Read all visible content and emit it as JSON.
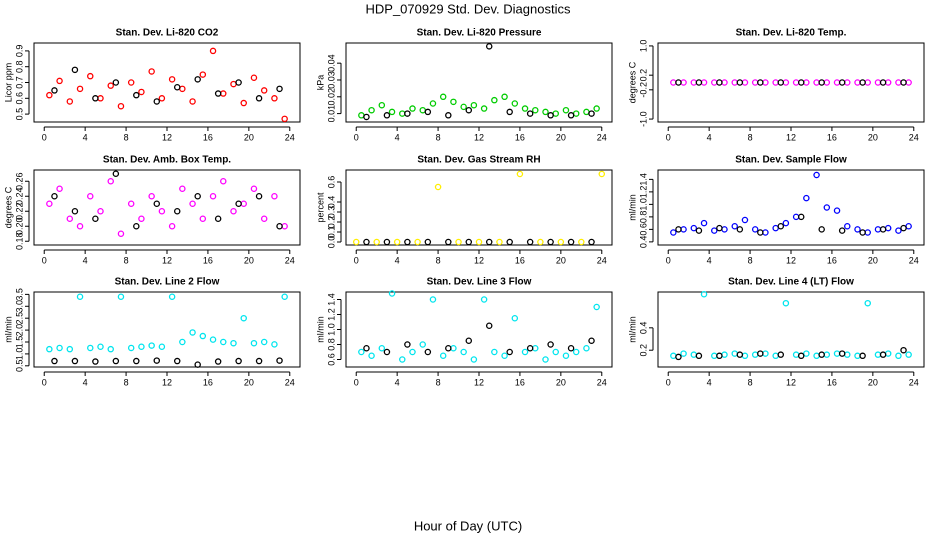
{
  "page": {
    "title": "HDP_070929  Std. Dev. Diagnostics",
    "xlabel": "Hour of Day (UTC)"
  },
  "chart_data": [
    {
      "type": "scatter",
      "title": "Stan. Dev. Li-820 CO2",
      "ylabel": "Licor ppm",
      "xlim": [
        -1,
        25
      ],
      "xticks": [
        0,
        4,
        8,
        12,
        16,
        20,
        24
      ],
      "ylim": [
        0.45,
        0.95
      ],
      "yticks": [
        0.5,
        0.6,
        0.7,
        0.8,
        0.9
      ],
      "series": [
        {
          "color": "#ff0000",
          "x": [
            0.5,
            1.5,
            2.5,
            3.5,
            4.5,
            5.5,
            6.5,
            7.5,
            8.5,
            9.5,
            10.5,
            11.5,
            12.5,
            13.5,
            14.5,
            15.5,
            16.5,
            17.5,
            18.5,
            19.5,
            20.5,
            21.5,
            22.5,
            23.5
          ],
          "values": [
            0.62,
            0.71,
            0.58,
            0.66,
            0.74,
            0.6,
            0.68,
            0.55,
            0.7,
            0.64,
            0.77,
            0.6,
            0.72,
            0.66,
            0.58,
            0.75,
            0.9,
            0.63,
            0.69,
            0.57,
            0.73,
            0.65,
            0.6,
            0.47
          ]
        },
        {
          "color": "#000000",
          "x": [
            1,
            3,
            5,
            7,
            9,
            11,
            13,
            15,
            17,
            19,
            21,
            23
          ],
          "values": [
            0.65,
            0.78,
            0.6,
            0.7,
            0.62,
            0.58,
            0.67,
            0.72,
            0.63,
            0.7,
            0.6,
            0.66
          ]
        }
      ]
    },
    {
      "type": "scatter",
      "title": "Stan. Dev. Li-820 Pressure",
      "ylabel": "kPa",
      "xlim": [
        -1,
        25
      ],
      "xticks": [
        0,
        4,
        8,
        12,
        16,
        20,
        24
      ],
      "ylim": [
        0.005,
        0.052
      ],
      "yticks": [
        0.01,
        0.02,
        0.03,
        0.04
      ],
      "series": [
        {
          "color": "#00cc00",
          "x": [
            0.5,
            1.5,
            2.5,
            3.5,
            4.5,
            5.5,
            6.5,
            7.5,
            8.5,
            9.5,
            10.5,
            11.5,
            12.5,
            13.5,
            14.5,
            15.5,
            16.5,
            17.5,
            18.5,
            19.5,
            20.5,
            21.5,
            22.5,
            23.5
          ],
          "values": [
            0.009,
            0.012,
            0.015,
            0.011,
            0.01,
            0.013,
            0.012,
            0.016,
            0.02,
            0.017,
            0.014,
            0.015,
            0.013,
            0.018,
            0.02,
            0.016,
            0.013,
            0.012,
            0.011,
            0.01,
            0.012,
            0.01,
            0.011,
            0.013
          ]
        },
        {
          "color": "#000000",
          "x": [
            1,
            3,
            5,
            7,
            9,
            11,
            13,
            15,
            17,
            19,
            21,
            23
          ],
          "values": [
            0.008,
            0.009,
            0.01,
            0.011,
            0.009,
            0.012,
            0.05,
            0.011,
            0.01,
            0.009,
            0.009,
            0.01
          ]
        }
      ]
    },
    {
      "type": "scatter",
      "title": "Stan. Dev. Li-820 Temp.",
      "ylabel": "degrees C",
      "xlim": [
        -1,
        25
      ],
      "xticks": [
        0,
        4,
        8,
        12,
        16,
        20,
        24
      ],
      "ylim": [
        -1.08,
        1.08
      ],
      "yticks": [
        {
          "value": -1,
          "label": "-1.0"
        },
        -0.2,
        0.2,
        {
          "value": 1,
          "label": "1.0"
        }
      ],
      "series": [
        {
          "color": "#ff00ff",
          "x": [
            0.5,
            1.5,
            2.5,
            3.5,
            4.5,
            5.5,
            6.5,
            7.5,
            8.5,
            9.5,
            10.5,
            11.5,
            12.5,
            13.5,
            14.5,
            15.5,
            16.5,
            17.5,
            18.5,
            19.5,
            20.5,
            21.5,
            22.5,
            23.5
          ],
          "values": [
            0,
            0,
            0,
            0,
            0,
            0,
            0,
            0,
            0,
            0,
            0,
            0,
            0,
            0,
            0,
            0,
            0,
            0,
            0,
            0,
            0,
            0,
            0,
            0
          ]
        },
        {
          "color": "#000000",
          "x": [
            1,
            3,
            5,
            7,
            9,
            11,
            13,
            15,
            17,
            19,
            21,
            23
          ],
          "values": [
            0,
            0,
            0,
            0,
            0,
            0,
            0,
            0,
            0,
            0,
            0,
            0
          ]
        }
      ]
    },
    {
      "type": "scatter",
      "title": "Stan. Dev. Amb. Box Temp.",
      "ylabel": "degrees C",
      "xlim": [
        -1,
        25
      ],
      "xticks": [
        0,
        4,
        8,
        12,
        16,
        20,
        24
      ],
      "ylim": [
        0.175,
        0.275
      ],
      "yticks": [
        0.18,
        {
          "value": 0.2,
          "label": "0.20"
        },
        0.22,
        0.24,
        0.26
      ],
      "series": [
        {
          "color": "#ff00ff",
          "x": [
            0.5,
            1.5,
            2.5,
            3.5,
            4.5,
            5.5,
            6.5,
            7.5,
            8.5,
            9.5,
            10.5,
            11.5,
            12.5,
            13.5,
            14.5,
            15.5,
            16.5,
            17.5,
            18.5,
            19.5,
            20.5,
            21.5,
            22.5,
            23.5
          ],
          "values": [
            0.23,
            0.25,
            0.21,
            0.2,
            0.24,
            0.22,
            0.26,
            0.19,
            0.23,
            0.21,
            0.24,
            0.22,
            0.2,
            0.25,
            0.23,
            0.21,
            0.24,
            0.26,
            0.22,
            0.23,
            0.25,
            0.21,
            0.24,
            0.2
          ]
        },
        {
          "color": "#000000",
          "x": [
            1,
            3,
            5,
            7,
            9,
            11,
            13,
            15,
            17,
            19,
            21,
            23
          ],
          "values": [
            0.24,
            0.22,
            0.21,
            0.27,
            0.2,
            0.23,
            0.22,
            0.24,
            0.21,
            0.23,
            0.24,
            0.2
          ]
        }
      ]
    },
    {
      "type": "scatter",
      "title": "Stan. Dev. Gas Stream RH",
      "ylabel": "percent",
      "xlim": [
        -1,
        25
      ],
      "xticks": [
        0,
        4,
        8,
        12,
        16,
        20,
        24
      ],
      "ylim": [
        -0.03,
        0.72
      ],
      "yticks": [
        {
          "value": 0,
          "label": "0.0"
        },
        0.1,
        0.2,
        0.3,
        0.4,
        0.6
      ],
      "series": [
        {
          "color": "#ffee00",
          "x": [
            0,
            2,
            4,
            6,
            8,
            10,
            12,
            14,
            16,
            18,
            20,
            22,
            24
          ],
          "values": [
            0,
            0,
            0,
            0,
            0.55,
            0,
            0,
            0,
            0.68,
            0,
            0,
            0,
            0.68
          ]
        },
        {
          "color": "#000000",
          "x": [
            1,
            3,
            5,
            7,
            9,
            11,
            13,
            15,
            17,
            19,
            21,
            23
          ],
          "values": [
            0,
            0,
            0,
            0,
            0,
            0,
            0,
            0,
            0,
            0,
            0,
            0
          ]
        }
      ]
    },
    {
      "type": "scatter",
      "title": "Stan. Dev. Sample Flow",
      "ylabel": "ml/min",
      "xlim": [
        -1,
        25
      ],
      "xticks": [
        0,
        4,
        8,
        12,
        16,
        20,
        24
      ],
      "ylim": [
        0.35,
        1.55
      ],
      "yticks": [
        0.4,
        0.6,
        0.8,
        {
          "value": 1,
          "label": "1.0"
        },
        1.2,
        1.4
      ],
      "series": [
        {
          "color": "#0000ff",
          "x": [
            0.5,
            1.5,
            2.5,
            3.5,
            4.5,
            5.5,
            6.5,
            7.5,
            8.5,
            9.5,
            10.5,
            11.5,
            12.5,
            13.5,
            14.5,
            15.5,
            16.5,
            17.5,
            18.5,
            19.5,
            20.5,
            21.5,
            22.5,
            23.5
          ],
          "values": [
            0.55,
            0.6,
            0.62,
            0.7,
            0.58,
            0.6,
            0.65,
            0.75,
            0.6,
            0.55,
            0.62,
            0.7,
            0.8,
            1.1,
            1.47,
            0.95,
            0.9,
            0.65,
            0.6,
            0.55,
            0.6,
            0.62,
            0.58,
            0.65
          ]
        },
        {
          "color": "#000000",
          "x": [
            1,
            3,
            5,
            7,
            9,
            11,
            13,
            15,
            17,
            19,
            21,
            23
          ],
          "values": [
            0.6,
            0.58,
            0.62,
            0.6,
            0.55,
            0.65,
            0.8,
            0.6,
            0.58,
            0.55,
            0.6,
            0.62
          ]
        }
      ]
    },
    {
      "type": "scatter",
      "title": "Stan. Dev. Line 2 Flow",
      "ylabel": "ml/min",
      "xlim": [
        -1,
        25
      ],
      "xticks": [
        0,
        4,
        8,
        12,
        16,
        20,
        24
      ],
      "ylim": [
        0.45,
        3.6
      ],
      "yticks": [
        0.5,
        {
          "value": 1,
          "label": "1.0"
        },
        1.5,
        {
          "value": 2,
          "label": "2.0"
        },
        2.5,
        {
          "value": 3,
          "label": "3.0"
        },
        3.5
      ],
      "series": [
        {
          "color": "#00e5ee",
          "x": [
            0.5,
            1.5,
            2.5,
            3.5,
            4.5,
            5.5,
            6.5,
            7.5,
            8.5,
            9.5,
            10.5,
            11.5,
            12.5,
            13.5,
            14.5,
            15.5,
            16.5,
            17.5,
            18.5,
            19.5,
            20.5,
            21.5,
            22.5,
            23.5
          ],
          "values": [
            1.2,
            1.25,
            1.2,
            3.4,
            1.25,
            1.3,
            1.2,
            3.4,
            1.25,
            1.3,
            1.35,
            1.3,
            3.4,
            1.5,
            1.9,
            1.75,
            1.6,
            1.5,
            1.45,
            2.5,
            1.45,
            1.5,
            1.4,
            3.4
          ]
        },
        {
          "color": "#000000",
          "x": [
            1,
            3,
            5,
            7,
            9,
            11,
            13,
            15,
            17,
            19,
            21,
            23
          ],
          "values": [
            0.7,
            0.7,
            0.68,
            0.7,
            0.7,
            0.72,
            0.7,
            0.55,
            0.68,
            0.7,
            0.7,
            0.72
          ]
        }
      ]
    },
    {
      "type": "scatter",
      "title": "Stan. Dev. Line 3 Flow",
      "ylabel": "ml/min",
      "xlim": [
        -1,
        25
      ],
      "xticks": [
        0,
        4,
        8,
        12,
        16,
        20,
        24
      ],
      "ylim": [
        0.5,
        1.5
      ],
      "yticks": [
        0.6,
        0.8,
        {
          "value": 1,
          "label": "1.0"
        },
        1.2,
        1.4
      ],
      "series": [
        {
          "color": "#00e5ee",
          "x": [
            0.5,
            1.5,
            2.5,
            3.5,
            4.5,
            5.5,
            6.5,
            7.5,
            8.5,
            9.5,
            10.5,
            11.5,
            12.5,
            13.5,
            14.5,
            15.5,
            16.5,
            17.5,
            18.5,
            19.5,
            20.5,
            21.5,
            22.5,
            23.5
          ],
          "values": [
            0.7,
            0.65,
            0.75,
            1.48,
            0.6,
            0.7,
            0.8,
            1.4,
            0.65,
            0.75,
            0.7,
            0.6,
            1.4,
            0.7,
            0.65,
            1.15,
            0.7,
            0.75,
            0.6,
            0.7,
            0.65,
            0.7,
            0.75,
            1.3
          ]
        },
        {
          "color": "#000000",
          "x": [
            1,
            3,
            5,
            7,
            9,
            11,
            13,
            15,
            17,
            19,
            21,
            23
          ],
          "values": [
            0.75,
            0.7,
            0.8,
            0.7,
            0.75,
            0.85,
            1.05,
            0.7,
            0.75,
            0.8,
            0.75,
            0.85
          ]
        }
      ]
    },
    {
      "type": "scatter",
      "title": "Stan. Dev. Line 4 (LT) Flow",
      "ylabel": "ml/min",
      "xlim": [
        -1,
        25
      ],
      "xticks": [
        0,
        4,
        8,
        12,
        16,
        20,
        24
      ],
      "ylim": [
        0.05,
        0.72
      ],
      "yticks": [
        0.2,
        0.4
      ],
      "series": [
        {
          "color": "#00e5ee",
          "x": [
            0.5,
            1.5,
            2.5,
            3.5,
            4.5,
            5.5,
            6.5,
            7.5,
            8.5,
            9.5,
            10.5,
            11.5,
            12.5,
            13.5,
            14.5,
            15.5,
            16.5,
            17.5,
            18.5,
            19.5,
            20.5,
            21.5,
            22.5,
            23.5
          ],
          "values": [
            0.15,
            0.17,
            0.16,
            0.7,
            0.15,
            0.16,
            0.17,
            0.15,
            0.16,
            0.17,
            0.15,
            0.62,
            0.16,
            0.17,
            0.15,
            0.16,
            0.17,
            0.16,
            0.15,
            0.62,
            0.16,
            0.17,
            0.15,
            0.16
          ]
        },
        {
          "color": "#000000",
          "x": [
            1,
            3,
            5,
            7,
            9,
            11,
            13,
            15,
            17,
            19,
            21,
            23
          ],
          "values": [
            0.14,
            0.15,
            0.15,
            0.16,
            0.17,
            0.16,
            0.15,
            0.16,
            0.17,
            0.15,
            0.16,
            0.2
          ]
        }
      ]
    }
  ]
}
